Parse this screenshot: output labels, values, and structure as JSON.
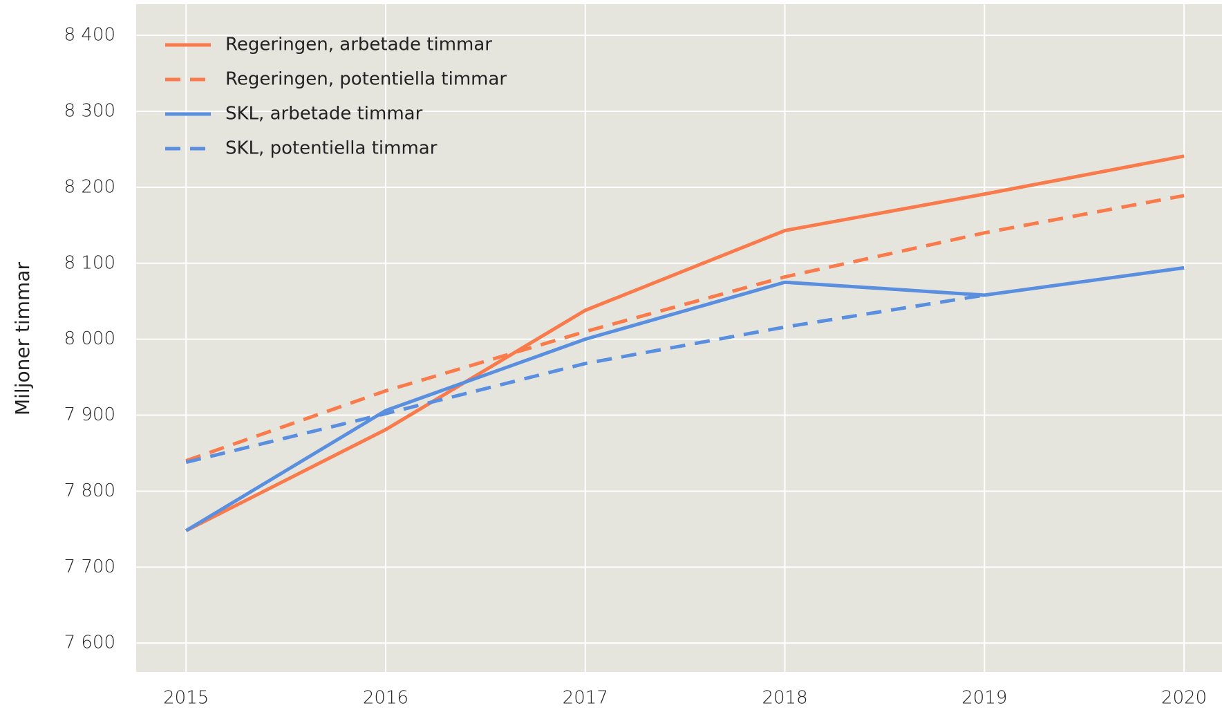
{
  "chart_data": {
    "type": "line",
    "y_label": "Miljoner timmar",
    "x": [
      2015,
      2016,
      2017,
      2018,
      2019,
      2020
    ],
    "series": [
      {
        "name": "Regeringen, arbetade timmar",
        "color": "#f97a4a",
        "dash": false,
        "values": [
          7748,
          7881,
          8038,
          8143,
          8191,
          8241
        ]
      },
      {
        "name": "Regeringen, potentiella timmar",
        "color": "#f97a4a",
        "dash": true,
        "values": [
          7840,
          7932,
          8010,
          8082,
          8140,
          8189
        ]
      },
      {
        "name": "SKL, arbetade timmar",
        "color": "#5a8fe0",
        "dash": false,
        "values": [
          7748,
          7906,
          8000,
          8075,
          8058,
          8094
        ]
      },
      {
        "name": "SKL, potentiella timmar",
        "color": "#5a8fe0",
        "dash": true,
        "values": [
          7838,
          7902,
          7968,
          8016,
          8058,
          null
        ]
      }
    ],
    "xlim": [
      2014.75,
      2020.19
    ],
    "xticks": [
      2015,
      2016,
      2017,
      2018,
      2019,
      2020
    ],
    "ylim": [
      7562,
      8441
    ],
    "yticks": [
      {
        "value": 7600,
        "label": "7 600"
      },
      {
        "value": 7700,
        "label": "7 700"
      },
      {
        "value": 7800,
        "label": "7 800"
      },
      {
        "value": 7900,
        "label": "7 900"
      },
      {
        "value": 8000,
        "label": "8 000"
      },
      {
        "value": 8100,
        "label": "8 100"
      },
      {
        "value": 8200,
        "label": "8 200"
      },
      {
        "value": 8300,
        "label": "8 300"
      },
      {
        "value": 8400,
        "label": "8 400"
      }
    ],
    "grid": true,
    "legend": "top-left",
    "background": "#e5e4dd"
  }
}
